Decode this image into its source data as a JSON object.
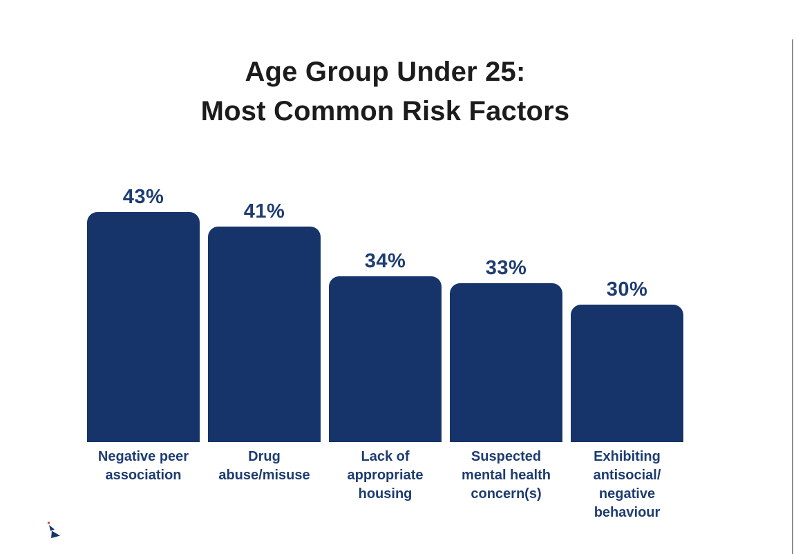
{
  "title": {
    "line1": "Age Group Under 25:",
    "line2": "Most Common Risk Factors"
  },
  "chart_data": {
    "type": "bar",
    "title": "Age Group Under 25: Most Common Risk Factors",
    "categories": [
      "Negative peer association",
      "Drug abuse/misuse",
      "Lack of appropriate housing",
      "Suspected mental health concern(s)",
      "Exhibiting antisocial/negative behaviour"
    ],
    "categories_display": [
      "Negative peer\nassociation",
      "Drug\nabuse/misuse",
      "Lack of\nappropriate\nhousing",
      "Suspected\nmental health\nconcern(s)",
      "Exhibiting\nantisocial/\nnegative\nbehaviour"
    ],
    "values": [
      43,
      41,
      34,
      33,
      30
    ],
    "value_labels": [
      "43%",
      "41%",
      "34%",
      "33%",
      "30%"
    ],
    "unit": "%",
    "ylim": [
      0,
      45
    ],
    "grid": false,
    "legend": false,
    "bar_color": "#17346A",
    "value_label_color": "#1D3C71",
    "category_label_color": "#1D3C71",
    "title_color": "#1C1C1C",
    "background": "#FFFFFF",
    "layout": "vertical bars with rounded top corners, value labels above bars, category labels below bars"
  },
  "decorations": {
    "right_edge_line_color": "#8D8D8D",
    "corner_mark_navy": "#17346A",
    "corner_mark_red": "#E1492F"
  }
}
